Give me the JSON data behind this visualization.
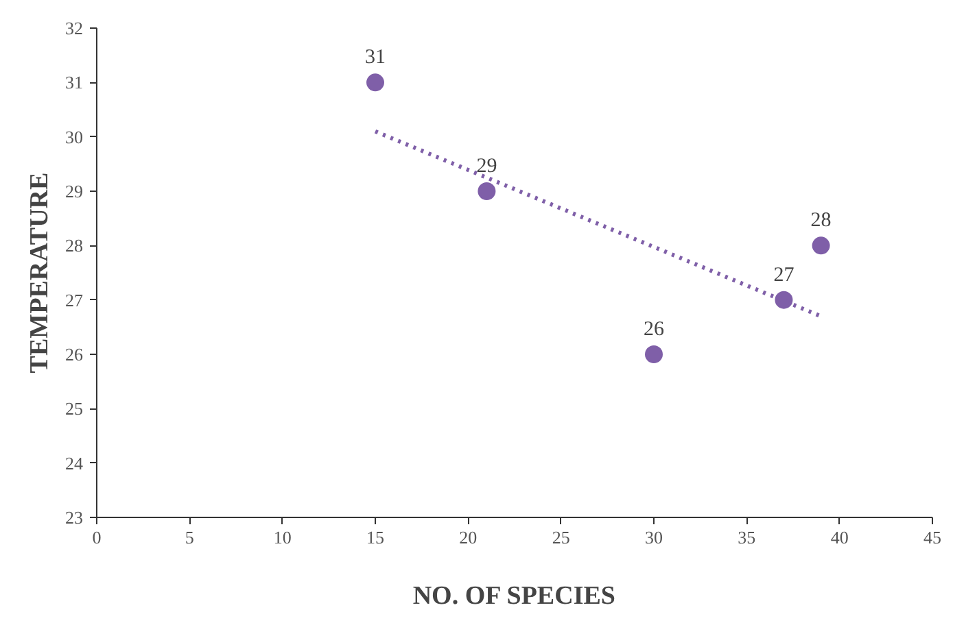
{
  "chart_data": {
    "type": "scatter",
    "xlabel": "NO. OF SPECIES",
    "ylabel": "TEMPERATURE",
    "series": [
      {
        "color": "#7f5fa8",
        "x": [
          15,
          21,
          30,
          37,
          39
        ],
        "values": [
          31,
          29,
          26,
          27,
          28
        ],
        "value_labels": [
          "31",
          "29",
          "26",
          "27",
          "28"
        ],
        "marker": "circle"
      },
      {
        "type": "line",
        "color": "#7f5fa8",
        "x": [
          15,
          39
        ],
        "values": [
          30.1,
          26.7
        ],
        "line_style": "dotted"
      }
    ],
    "xlim": [
      0,
      45
    ],
    "ylim": [
      23,
      32
    ],
    "xticks": [
      0,
      5,
      10,
      15,
      20,
      25,
      30,
      35,
      40,
      45
    ],
    "yticks": [
      23,
      24,
      25,
      26,
      27,
      28,
      29,
      30,
      31,
      32
    ],
    "grid": false
  }
}
